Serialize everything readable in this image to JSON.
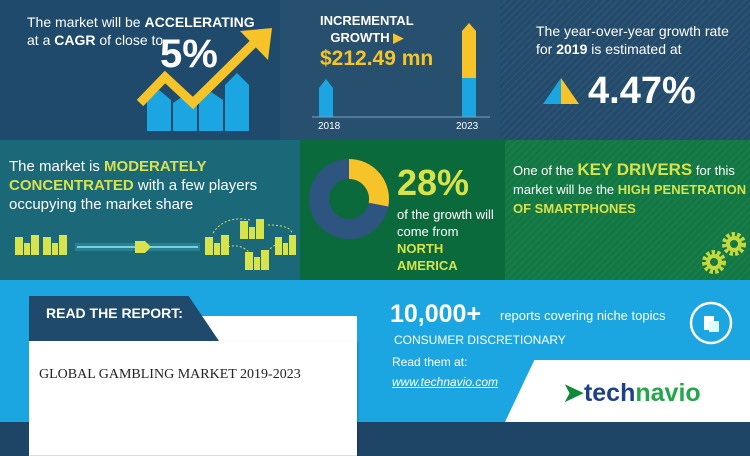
{
  "cagr": {
    "line1_pre": "The market will be ",
    "line1_bold": "ACCELERATING",
    "line2_pre": "at a ",
    "line2_bold": "CAGR",
    "line2_post": " of close to",
    "value": "5%"
  },
  "incremental": {
    "label1": "INCREMENTAL",
    "label2": "GROWTH",
    "value": "$212.49 mn",
    "year_start": "2018",
    "year_end": "2023"
  },
  "yoy": {
    "line1": "The year-over-year growth rate",
    "line2_pre": "for ",
    "line2_bold": "2019",
    "line2_post": " is estimated at",
    "value": "4.47%"
  },
  "concentration": {
    "pre": "The market is ",
    "bold1": "MODERATELY",
    "bold2": "CONCENTRATED",
    "post": " with a few players",
    "line3": "occupying the market share"
  },
  "region": {
    "value": "28%",
    "share_fraction": 0.28,
    "line1": "of the growth will",
    "line2": "come from",
    "region": "NORTH AMERICA"
  },
  "drivers": {
    "pre": "One of the ",
    "bold": "KEY DRIVERS",
    "post": " for this",
    "line2": "market will be the ",
    "bold2": "HIGH PENETRATION",
    "bold3": "OF SMARTPHONES"
  },
  "report": {
    "header": "READ THE REPORT:",
    "title": "GLOBAL GAMBLING MARKET 2019-2023"
  },
  "promo": {
    "count": "10,000+",
    "count_text": "reports covering niche topics",
    "category": "CONSUMER DISCRETIONARY",
    "read": "Read them at:",
    "link": "www.technavio.com"
  },
  "logo": {
    "tech": "tech",
    "navio": "navio"
  },
  "colors": {
    "yellow": "#f6c428",
    "blue": "#1ba6e2",
    "lime": "#d8e24a",
    "navy": "#1f4a6b",
    "green": "#0b6a3c"
  }
}
